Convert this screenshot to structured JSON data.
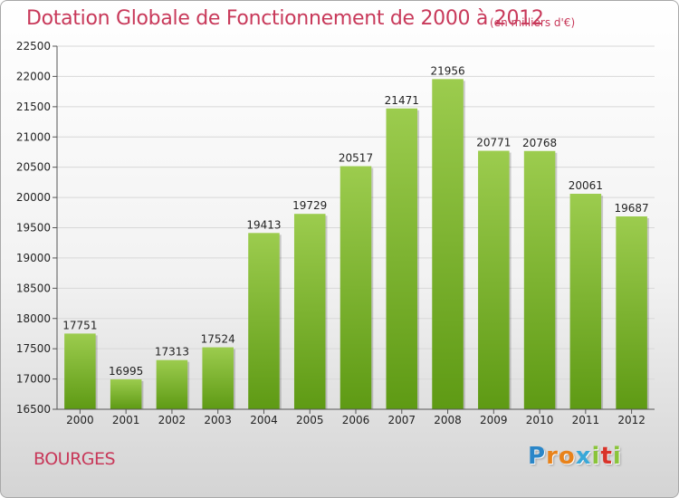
{
  "header": {
    "title": "Dotation Globale de Fonctionnement de 2000 à 2012",
    "subtitle": "(en milliers d'€)"
  },
  "footer": {
    "city": "BOURGES",
    "logo_letters": [
      "P",
      "r",
      "o",
      "x",
      "i",
      "t",
      "i"
    ],
    "logo_colors": [
      "#2a86c8",
      "#e8821a",
      "#e8821a",
      "#3aa8d8",
      "#8ac43a",
      "#d8342a",
      "#8ac43a"
    ]
  },
  "chart_data": {
    "type": "bar",
    "categories": [
      "2000",
      "2001",
      "2002",
      "2003",
      "2004",
      "2005",
      "2006",
      "2007",
      "2008",
      "2009",
      "2010",
      "2011",
      "2012"
    ],
    "values": [
      17751,
      16995,
      17313,
      17524,
      19413,
      19729,
      20517,
      21471,
      21956,
      20771,
      20768,
      20061,
      19687
    ],
    "ylim": [
      16500,
      22500
    ],
    "yticks": [
      16500,
      17000,
      17500,
      18000,
      18500,
      19000,
      19500,
      20000,
      20500,
      21000,
      21500,
      22000,
      22500
    ],
    "grid": true,
    "bar_color_top": "#9ccc4e",
    "bar_color_bottom": "#5e9a14"
  }
}
